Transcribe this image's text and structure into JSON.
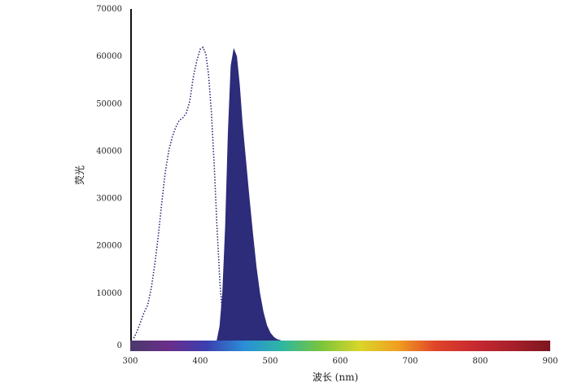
{
  "chart_data": {
    "type": "area",
    "title": "",
    "xlabel": "波长 (nm)",
    "ylabel": "荧光",
    "xlim": [
      300,
      900
    ],
    "ylim": [
      0,
      70000
    ],
    "x_ticks": [
      300,
      400,
      500,
      600,
      700,
      800,
      900
    ],
    "y_ticks": [
      0,
      10000,
      20000,
      30000,
      40000,
      50000,
      60000,
      70000
    ],
    "grid": false,
    "legend": "none",
    "series": [
      {
        "style": "dotted-line",
        "color": "#2a2a78",
        "points": [
          [
            305,
            500
          ],
          [
            310,
            2000
          ],
          [
            315,
            4000
          ],
          [
            320,
            6000
          ],
          [
            325,
            7500
          ],
          [
            330,
            11000
          ],
          [
            335,
            16000
          ],
          [
            340,
            22000
          ],
          [
            345,
            29000
          ],
          [
            350,
            35500
          ],
          [
            355,
            40000
          ],
          [
            360,
            43000
          ],
          [
            365,
            45000
          ],
          [
            370,
            46500
          ],
          [
            375,
            47000
          ],
          [
            380,
            48000
          ],
          [
            385,
            50500
          ],
          [
            390,
            55500
          ],
          [
            395,
            59000
          ],
          [
            400,
            61500
          ],
          [
            404,
            61900
          ],
          [
            408,
            60500
          ],
          [
            412,
            56000
          ],
          [
            416,
            48000
          ],
          [
            420,
            37000
          ],
          [
            424,
            24000
          ],
          [
            428,
            12500
          ],
          [
            432,
            5000
          ],
          [
            436,
            1500
          ],
          [
            440,
            300
          ],
          [
            445,
            0
          ]
        ]
      },
      {
        "style": "filled-area",
        "color": "#2c2c7a",
        "points": [
          [
            424,
            0
          ],
          [
            428,
            3000
          ],
          [
            432,
            10000
          ],
          [
            436,
            24000
          ],
          [
            440,
            44000
          ],
          [
            444,
            58000
          ],
          [
            448,
            61500
          ],
          [
            452,
            60000
          ],
          [
            456,
            54000
          ],
          [
            460,
            46000
          ],
          [
            465,
            38000
          ],
          [
            470,
            30000
          ],
          [
            475,
            22500
          ],
          [
            480,
            15500
          ],
          [
            485,
            10000
          ],
          [
            490,
            6000
          ],
          [
            495,
            3200
          ],
          [
            500,
            1600
          ],
          [
            505,
            700
          ],
          [
            510,
            200
          ],
          [
            515,
            0
          ]
        ]
      }
    ],
    "colors": {
      "axis": "#111111",
      "spectrum_stops": [
        "#4a3a6a",
        "#6a2d8a",
        "#3b3fb0",
        "#2a8fd8",
        "#2fb7a0",
        "#7ac43a",
        "#d8d62a",
        "#f0a020",
        "#e0442a",
        "#c82a30",
        "#a8202a",
        "#7c1620"
      ]
    }
  }
}
